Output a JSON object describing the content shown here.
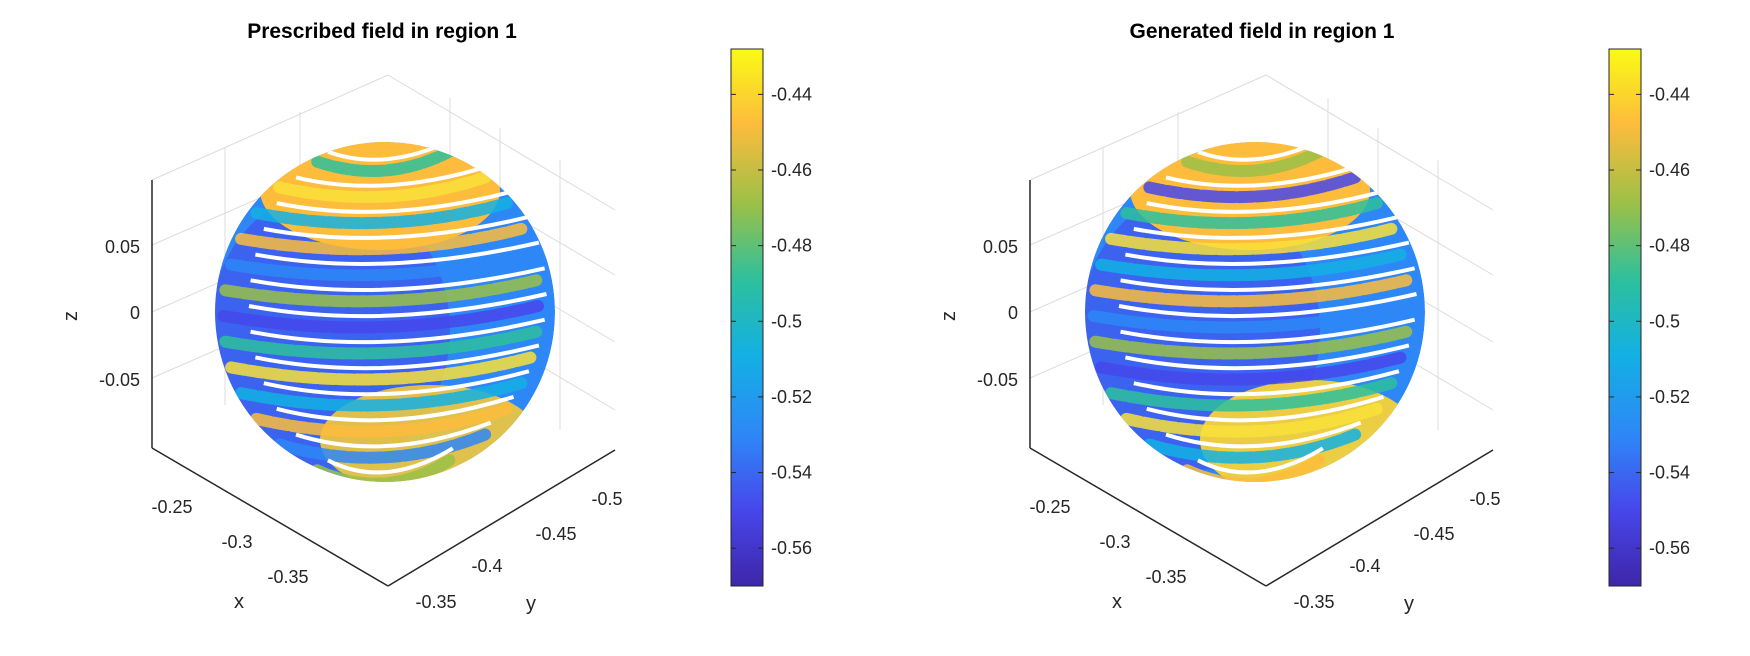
{
  "chart_data": [
    {
      "type": "scatter3d",
      "title": "Prescribed field in region 1",
      "xlabel": "x",
      "ylabel": "y",
      "zlabel": "z",
      "x_ticks": [
        "-0.25",
        "-0.3",
        "-0.35"
      ],
      "y_ticks": [
        "-0.5",
        "-0.45",
        "-0.4",
        "-0.35"
      ],
      "z_ticks": [
        "0.05",
        "0",
        "-0.05"
      ],
      "z_tick_values": [
        0.05,
        0,
        -0.05
      ],
      "zlim": [
        -0.1,
        0.1
      ],
      "colormap": "parula",
      "clim": [
        -0.57,
        -0.428
      ],
      "colorbar_ticks": [
        "-0.44",
        "-0.46",
        "-0.48",
        "-0.5",
        "-0.52",
        "-0.54",
        "-0.56"
      ],
      "colorbar_tick_values": [
        -0.44,
        -0.46,
        -0.48,
        -0.5,
        -0.52,
        -0.54,
        -0.56
      ],
      "sphere": {
        "center_z": 0,
        "radius": 0.09,
        "rings": 14
      }
    },
    {
      "type": "scatter3d",
      "title": "Generated field in region 1",
      "xlabel": "x",
      "ylabel": "y",
      "zlabel": "z",
      "x_ticks": [
        "-0.25",
        "-0.3",
        "-0.35"
      ],
      "y_ticks": [
        "-0.5",
        "-0.45",
        "-0.4",
        "-0.35"
      ],
      "z_ticks": [
        "0.05",
        "0",
        "-0.05"
      ],
      "z_tick_values": [
        0.05,
        0,
        -0.05
      ],
      "zlim": [
        -0.1,
        0.1
      ],
      "colormap": "parula",
      "clim": [
        -0.57,
        -0.428
      ],
      "colorbar_ticks": [
        "-0.44",
        "-0.46",
        "-0.48",
        "-0.5",
        "-0.52",
        "-0.54",
        "-0.56"
      ],
      "colorbar_tick_values": [
        -0.44,
        -0.46,
        -0.48,
        -0.5,
        -0.52,
        -0.54,
        -0.56
      ],
      "sphere": {
        "center_z": 0,
        "radius": 0.09,
        "rings": 14
      }
    }
  ],
  "colors": {
    "axis": "#262626",
    "grid": "#dcdcdc",
    "parula_low": "#3e26a8",
    "parula_high": "#f9fb15"
  }
}
